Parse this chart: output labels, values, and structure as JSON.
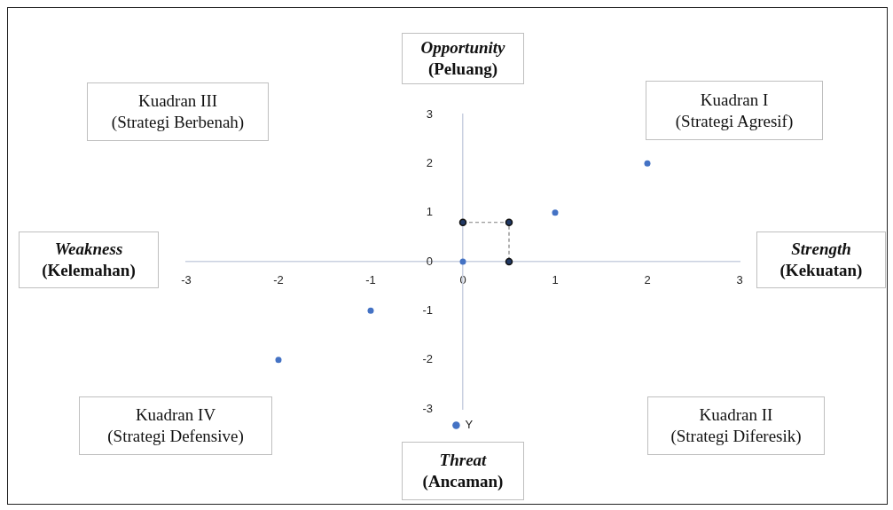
{
  "chart_data": {
    "type": "scatter",
    "annotations": [
      "Opportunity\n(Peluang)",
      "Kuadran III\n(Strategi Berbenah)",
      "Kuadran I\n(Strategi Agresif)",
      "Weakness\n(Kelemahan)",
      "Strength\n(Kekuatan)",
      "Kuadran IV\n(Strategi Defensive)",
      "Kuadran II\n(Strategi Diferesik)",
      "Threat\n(Ancaman)"
    ],
    "series": [
      {
        "name": "Y",
        "color": "#4472c4",
        "x": [
          -2,
          -1,
          0,
          1,
          2
        ],
        "values": [
          -2,
          -1,
          0,
          1,
          2
        ]
      },
      {
        "type": "line",
        "color": "#203864",
        "x": [
          0,
          0.5,
          0.5
        ],
        "values": [
          0.8,
          0.8,
          0
        ],
        "line_style": "dashed"
      }
    ],
    "xlim": [
      -3,
      3
    ],
    "ylim": [
      -3,
      3
    ],
    "xticks": [
      -3,
      -2,
      -1,
      0,
      1,
      2,
      3
    ],
    "yticks": [
      -3,
      -2,
      -1,
      0,
      1,
      2,
      3
    ],
    "legend": "bottom",
    "grid": false,
    "marker": "circle"
  }
}
